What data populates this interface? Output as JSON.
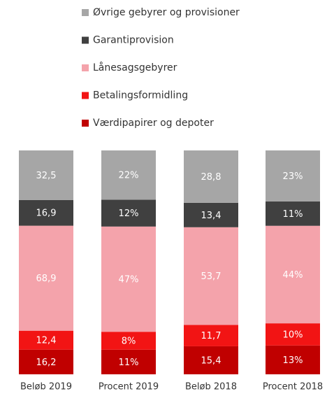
{
  "chart_data": {
    "type": "stacked-bar",
    "categories": [
      "Beløb 2019",
      "Procent 2019",
      "Beløb 2018",
      "Procent 2018"
    ],
    "series": [
      {
        "name": "Værdipapirer og depoter",
        "color": "#c00000",
        "values": [
          16.2,
          11,
          15.4,
          13
        ],
        "value_labels": [
          "16,2",
          "11%",
          "15,4",
          "13%"
        ]
      },
      {
        "name": "Betalingsformidling",
        "color": "#f21414",
        "values": [
          12.4,
          8,
          11.7,
          10
        ],
        "value_labels": [
          "12,4",
          "8%",
          "11,7",
          "10%"
        ]
      },
      {
        "name": "Lånesagsgebyrer",
        "color": "#f4a3ab",
        "values": [
          68.9,
          47,
          53.7,
          44
        ],
        "value_labels": [
          "68,9",
          "47%",
          "53,7",
          "44%"
        ]
      },
      {
        "name": "Garantiprovision",
        "color": "#404040",
        "values": [
          16.9,
          12,
          13.4,
          11
        ],
        "value_labels": [
          "16,9",
          "12%",
          "13,4",
          "11%"
        ]
      },
      {
        "name": "Øvrige gebyrer og provisioner",
        "color": "#a6a6a6",
        "values": [
          32.5,
          22,
          28.8,
          23
        ],
        "value_labels": [
          "32,5",
          "22%",
          "28,8",
          "23%"
        ]
      }
    ]
  }
}
